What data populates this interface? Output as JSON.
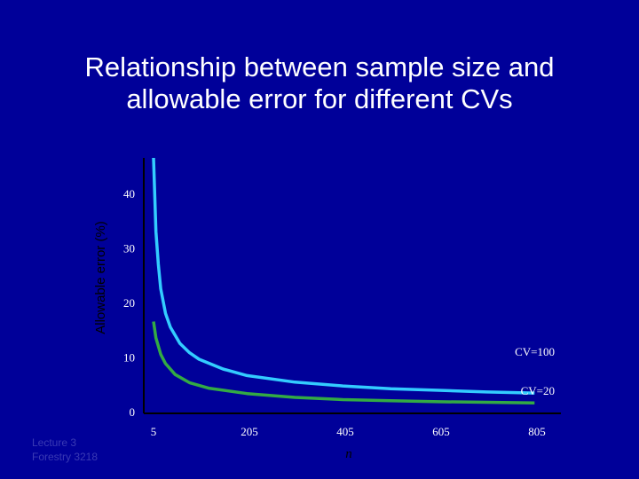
{
  "slide": {
    "title_line1": "Relationship between sample size and",
    "title_line2": "allowable error for different CVs",
    "footer_line1": "Lecture 3",
    "footer_line2": "Forestry 3218"
  },
  "colors": {
    "background": "#000099",
    "text": "#ffffff",
    "axis": "#000000",
    "cv100": "#33ccff",
    "cv20": "#33aa44",
    "footer": "#3a3ab4"
  },
  "chart_data": {
    "type": "line",
    "title": "Relationship between sample size and allowable error for different CVs",
    "xlabel": "n",
    "ylabel": "Allowable error (%)",
    "xlim": [
      5,
      805
    ],
    "ylim": [
      0,
      40
    ],
    "x_ticks": [
      5,
      205,
      405,
      605,
      805
    ],
    "y_ticks": [
      0,
      10,
      20,
      30,
      40
    ],
    "grid": false,
    "series": [
      {
        "name": "CV=100",
        "color": "#33ccff",
        "x": [
          5,
          10,
          15,
          20,
          30,
          40,
          60,
          80,
          100,
          150,
          200,
          300,
          400,
          500,
          600,
          700,
          800
        ],
        "y": [
          47,
          33,
          27,
          22.5,
          18,
          15.5,
          12.5,
          10.8,
          9.6,
          7.8,
          6.6,
          5.4,
          4.7,
          4.2,
          3.9,
          3.6,
          3.4
        ]
      },
      {
        "name": "CV=20",
        "color": "#33aa44",
        "x": [
          5,
          10,
          20,
          30,
          50,
          80,
          120,
          200,
          300,
          400,
          500,
          600,
          700,
          800
        ],
        "y": [
          16.5,
          13.5,
          10.5,
          8.8,
          6.8,
          5.3,
          4.3,
          3.3,
          2.6,
          2.2,
          2.0,
          1.8,
          1.7,
          1.6
        ]
      }
    ]
  }
}
